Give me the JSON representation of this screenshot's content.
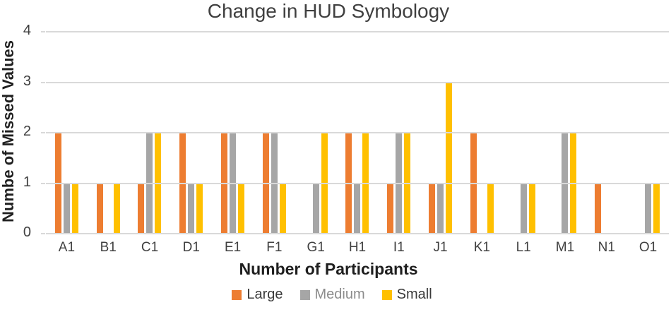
{
  "chart_data": {
    "type": "bar",
    "title": "Change in HUD Symbology",
    "xlabel": "Number of Participants",
    "ylabel": "Numbe of Missed Values",
    "categories": [
      "A1",
      "B1",
      "C1",
      "D1",
      "E1",
      "F1",
      "G1",
      "H1",
      "I1",
      "J1",
      "K1",
      "L1",
      "M1",
      "N1",
      "O1"
    ],
    "series": [
      {
        "name": "Large",
        "color": "#ED7D31",
        "label_color": "#3A3A3A",
        "values": [
          2,
          1,
          1,
          2,
          2,
          2,
          0,
          2,
          1,
          1,
          2,
          0,
          0,
          1,
          0
        ]
      },
      {
        "name": "Medium",
        "color": "#A6A6A6",
        "label_color": "#8C8C8C",
        "values": [
          1,
          0,
          2,
          1,
          2,
          2,
          1,
          1,
          2,
          1,
          0,
          1,
          2,
          0,
          1
        ]
      },
      {
        "name": "Small",
        "color": "#FFC000",
        "label_color": "#3A3A3A",
        "values": [
          1,
          1,
          2,
          1,
          1,
          1,
          2,
          2,
          2,
          3,
          1,
          1,
          2,
          0,
          1
        ]
      }
    ],
    "ylim": [
      0,
      4
    ],
    "yticks": [
      0,
      1,
      2,
      3,
      4
    ],
    "grid": true,
    "gridline_color": "#D9D9D9",
    "legend_position": "bottom"
  }
}
